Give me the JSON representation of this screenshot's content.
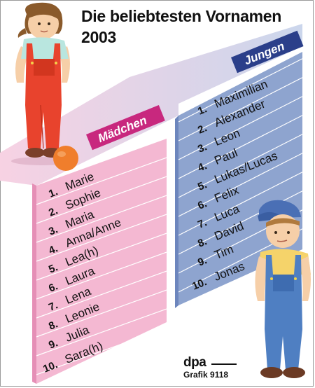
{
  "title": {
    "line1": "Die beliebtesten Vornamen",
    "line2": "2003"
  },
  "girls": {
    "header": "Mädchen",
    "items": [
      {
        "rank": "1.",
        "name": "Marie"
      },
      {
        "rank": "2.",
        "name": "Sophie"
      },
      {
        "rank": "3.",
        "name": "Maria"
      },
      {
        "rank": "4.",
        "name": "Anna/Anne"
      },
      {
        "rank": "5.",
        "name": "Lea(h)"
      },
      {
        "rank": "6.",
        "name": "Laura"
      },
      {
        "rank": "7.",
        "name": "Lena"
      },
      {
        "rank": "8.",
        "name": "Leonie"
      },
      {
        "rank": "9.",
        "name": "Julia"
      },
      {
        "rank": "10.",
        "name": "Sara(h)"
      }
    ]
  },
  "boys": {
    "header": "Jungen",
    "items": [
      {
        "rank": "1.",
        "name": "Maximilian"
      },
      {
        "rank": "2.",
        "name": "Alexander"
      },
      {
        "rank": "3.",
        "name": "Leon"
      },
      {
        "rank": "4.",
        "name": "Paul"
      },
      {
        "rank": "5.",
        "name": "Lukas/Lucas"
      },
      {
        "rank": "6.",
        "name": "Felix"
      },
      {
        "rank": "7.",
        "name": "Luca"
      },
      {
        "rank": "8.",
        "name": "David"
      },
      {
        "rank": "9.",
        "name": "Tim"
      },
      {
        "rank": "10.",
        "name": "Jonas"
      }
    ]
  },
  "credit": {
    "agency": "dpa",
    "graphic": "Grafik 9118"
  },
  "colors": {
    "girls_panel": "#f4b8d2",
    "girls_header": "#c8287e",
    "boys_panel": "#8ea4cf",
    "boys_header": "#2b3f8a",
    "top_plane": "#c6d3ea"
  }
}
